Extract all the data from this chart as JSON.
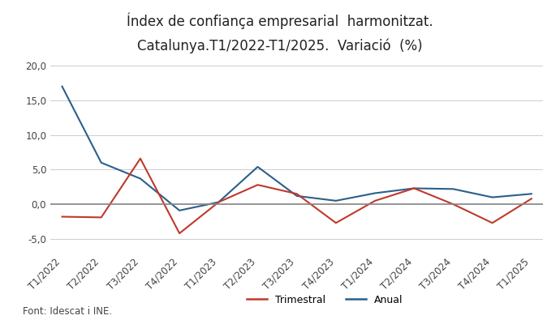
{
  "title_line1": "Índex de confiança empresarial  harmonitzat.",
  "title_line2": "Catalunya.T1/2022-T1/2025.  Variació  (%)",
  "categories": [
    "T1/2022",
    "T2/2022",
    "T3/2022",
    "T4/2022",
    "T1/2023",
    "T2/2023",
    "T3/2023",
    "T4/2023",
    "T1/2024",
    "T2/2024",
    "T3/2024",
    "T4/2024",
    "T1/2025"
  ],
  "trimestral": [
    -1.8,
    -1.9,
    6.6,
    -4.2,
    0.3,
    2.8,
    1.5,
    -2.7,
    0.5,
    2.3,
    0.0,
    -2.7,
    0.8
  ],
  "anual": [
    17.0,
    6.0,
    3.7,
    -0.9,
    0.3,
    5.4,
    1.2,
    0.5,
    1.6,
    2.3,
    2.2,
    1.0,
    1.5
  ],
  "trimestral_color": "#c0392b",
  "anual_color": "#2c5f8a",
  "ylim_min": -7.0,
  "ylim_max": 22.0,
  "yticks": [
    -5.0,
    0.0,
    5.0,
    10.0,
    15.0,
    20.0
  ],
  "ytick_labels": [
    "-5,0",
    "0,0",
    "5,0",
    "10,0",
    "15,0",
    "20,0"
  ],
  "background_color": "#ffffff",
  "grid_color": "#cccccc",
  "zero_line_color": "#888888",
  "font_color": "#444444",
  "legend_trimestral": "Trimestral",
  "legend_anual": "Anual",
  "footer": "Font: Idescat i INE.",
  "title_fontsize": 12,
  "axis_fontsize": 8.5,
  "legend_fontsize": 9,
  "footer_fontsize": 8.5
}
